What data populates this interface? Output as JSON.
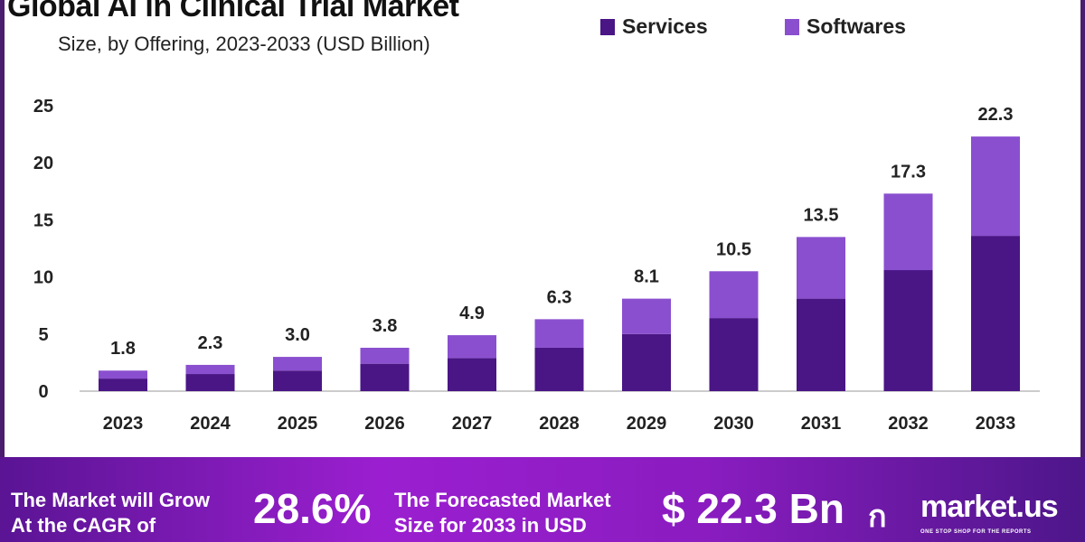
{
  "chart_data": {
    "type": "bar",
    "stacked": true,
    "title": "Global AI in Clinical Trial Market",
    "subtitle": "Size, by Offering, 2023-2033 (USD Billion)",
    "xlabel": "",
    "ylabel": "",
    "ylim": [
      0,
      25
    ],
    "yticks": [
      "0",
      "5",
      "10",
      "15",
      "20",
      "25"
    ],
    "categories": [
      "2023",
      "2024",
      "2025",
      "2026",
      "2027",
      "2028",
      "2029",
      "2030",
      "2031",
      "2032",
      "2033"
    ],
    "series": [
      {
        "name": "Services",
        "color": "#4a1585",
        "values": [
          1.1,
          1.5,
          1.8,
          2.4,
          2.9,
          3.8,
          5.0,
          6.4,
          8.1,
          10.6,
          13.6
        ]
      },
      {
        "name": "Softwares",
        "color": "#8a4fcf",
        "values": [
          0.7,
          0.8,
          1.2,
          1.4,
          2.0,
          2.5,
          3.1,
          4.1,
          5.4,
          6.7,
          8.7
        ]
      }
    ],
    "totals": [
      "1.8",
      "2.3",
      "3.0",
      "3.8",
      "4.9",
      "6.3",
      "8.1",
      "10.5",
      "13.5",
      "17.3",
      "22.3"
    ],
    "legend": "top-right",
    "grid": false
  },
  "banner": {
    "cagr_text_1": "The Market will Grow",
    "cagr_text_2": "At the CAGR of",
    "cagr_value": "28.6%",
    "forecast_text_1": "The Forecasted Market",
    "forecast_text_2": "Size for 2033 in USD",
    "forecast_value": "$ 22.3 Bn",
    "brand": "market.us",
    "brand_tagline": "ONE STOP SHOP FOR THE REPORTS"
  }
}
